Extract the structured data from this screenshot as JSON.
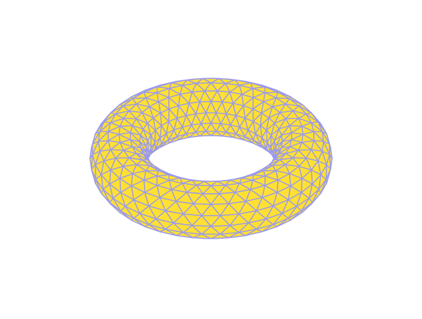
{
  "surface": {
    "face_color": "#ffe033",
    "edge_color": "#9999ee"
  }
}
